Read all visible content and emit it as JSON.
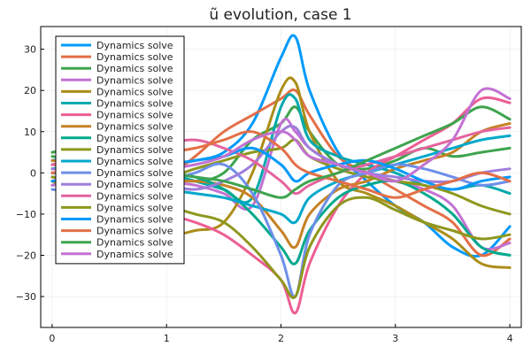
{
  "chart_data": {
    "type": "line",
    "title": "ũ evolution, case 1",
    "xlabel": "",
    "ylabel": "",
    "xlim": [
      -0.1,
      4.1
    ],
    "ylim": [
      -37.5,
      35.5
    ],
    "xticks": [
      0,
      1,
      2,
      3,
      4
    ],
    "yticks": [
      -30,
      -20,
      -10,
      0,
      10,
      20,
      30
    ],
    "grid": true,
    "legend_position": "top-left",
    "x": [
      0,
      0.25,
      0.5,
      0.75,
      1.0,
      1.25,
      1.5,
      1.75,
      2.0,
      2.125,
      2.25,
      2.5,
      2.75,
      3.0,
      3.25,
      3.5,
      3.75,
      4.0
    ],
    "series": [
      {
        "name": "Dynamics solve",
        "color": "#009AFA",
        "values": [
          3,
          4,
          5,
          4,
          2,
          3,
          5,
          12,
          28,
          33,
          20,
          5,
          -2,
          -8,
          -12,
          -18,
          -20,
          -13
        ]
      },
      {
        "name": "Dynamics solve",
        "color": "#E36F47",
        "values": [
          2,
          1,
          -2,
          -3,
          -1,
          4,
          10,
          14,
          18,
          20,
          14,
          4,
          0,
          -4,
          -8,
          -12,
          -20,
          -16
        ]
      },
      {
        "name": "Dynamics solve",
        "color": "#3EA44E",
        "values": [
          5,
          6,
          4,
          2,
          -1,
          -2,
          0,
          8,
          12,
          16,
          10,
          2,
          1,
          3,
          6,
          4,
          5,
          6
        ]
      },
      {
        "name": "Dynamics solve",
        "color": "#C371D2",
        "values": [
          0,
          1,
          2,
          0,
          -2,
          -3,
          -5,
          -8,
          12,
          10,
          6,
          2,
          0,
          -2,
          -4,
          -8,
          -18,
          -17
        ]
      },
      {
        "name": "Dynamics solve",
        "color": "#AC8D18",
        "values": [
          -2,
          -5,
          -8,
          -12,
          -15,
          -14,
          -12,
          0,
          20,
          22,
          10,
          -2,
          -5,
          -8,
          -12,
          -16,
          -22,
          -23
        ]
      },
      {
        "name": "Dynamics solve",
        "color": "#00A9AD",
        "values": [
          1,
          2,
          3,
          2,
          0,
          -2,
          -4,
          -6,
          16,
          18,
          8,
          4,
          2,
          0,
          -3,
          -4,
          -3,
          -5
        ]
      },
      {
        "name": "Dynamics solve",
        "color": "#ED5E93",
        "values": [
          -1,
          -3,
          -6,
          -8,
          -10,
          -12,
          -15,
          -20,
          -26,
          -34,
          -22,
          -8,
          0,
          4,
          8,
          12,
          18,
          17
        ]
      },
      {
        "name": "Dynamics solve",
        "color": "#C68125",
        "values": [
          3,
          2,
          0,
          -1,
          -2,
          -2,
          -3,
          -6,
          -14,
          -18,
          -10,
          -4,
          -2,
          1,
          3,
          5,
          10,
          12
        ]
      },
      {
        "name": "Dynamics solve",
        "color": "#00A98D",
        "values": [
          -3,
          -2,
          0,
          1,
          0,
          -1,
          -4,
          -10,
          -18,
          -22,
          -14,
          -6,
          -3,
          -2,
          -5,
          -10,
          -18,
          -20
        ]
      },
      {
        "name": "Dynamics solve",
        "color": "#8E971D",
        "values": [
          2,
          3,
          1,
          0,
          -1,
          1,
          3,
          5,
          6,
          8,
          4,
          1,
          -1,
          -2,
          -3,
          -5,
          -8,
          -10
        ]
      },
      {
        "name": "Dynamics solve",
        "color": "#00A8CB",
        "values": [
          0,
          -1,
          -2,
          -3,
          -4,
          -5,
          -6,
          -8,
          -10,
          -12,
          -6,
          -2,
          0,
          2,
          4,
          6,
          8,
          9
        ]
      },
      {
        "name": "Dynamics solve",
        "color": "#6D8FE9",
        "values": [
          -4,
          -5,
          -6,
          -4,
          -2,
          0,
          2,
          -5,
          -20,
          -30,
          -15,
          -3,
          0,
          2,
          1,
          -1,
          -3,
          -2
        ]
      },
      {
        "name": "Dynamics solve",
        "color": "#9E7EDB",
        "values": [
          1,
          0,
          -1,
          -2,
          -3,
          -4,
          -2,
          2,
          10,
          11,
          6,
          2,
          0,
          -1,
          -2,
          -2,
          0,
          1
        ]
      },
      {
        "name": "Dynamics solve",
        "color": "#E4649E",
        "values": [
          2,
          3,
          4,
          5,
          7,
          8,
          6,
          3,
          -2,
          -5,
          -3,
          0,
          2,
          4,
          6,
          8,
          10,
          11
        ]
      },
      {
        "name": "Dynamics solve",
        "color": "#8E971D",
        "values": [
          -1,
          -2,
          -4,
          -6,
          -8,
          -10,
          -12,
          -18,
          -26,
          -30,
          -18,
          -8,
          -6,
          -9,
          -12,
          -14,
          -16,
          -15
        ]
      },
      {
        "name": "Dynamics solve",
        "color": "#0099FA",
        "values": [
          -2,
          -1,
          0,
          1,
          2,
          3,
          4,
          6,
          2,
          -2,
          0,
          2,
          3,
          1,
          -2,
          -4,
          -2,
          -1
        ]
      },
      {
        "name": "Dynamics solve",
        "color": "#E36F47",
        "values": [
          0,
          1,
          3,
          4,
          5,
          6,
          8,
          10,
          6,
          2,
          0,
          -2,
          -4,
          -6,
          -4,
          -2,
          0,
          -2
        ]
      },
      {
        "name": "Dynamics solve",
        "color": "#3EA44E",
        "values": [
          4,
          3,
          2,
          1,
          0,
          -1,
          -2,
          -4,
          -6,
          -4,
          -2,
          0,
          3,
          6,
          9,
          12,
          16,
          13
        ]
      },
      {
        "name": "Dynamics solve",
        "color": "#C371D2",
        "values": [
          -3,
          -2,
          -1,
          0,
          1,
          2,
          4,
          8,
          10,
          8,
          4,
          2,
          0,
          -2,
          2,
          8,
          20,
          18
        ]
      }
    ]
  }
}
